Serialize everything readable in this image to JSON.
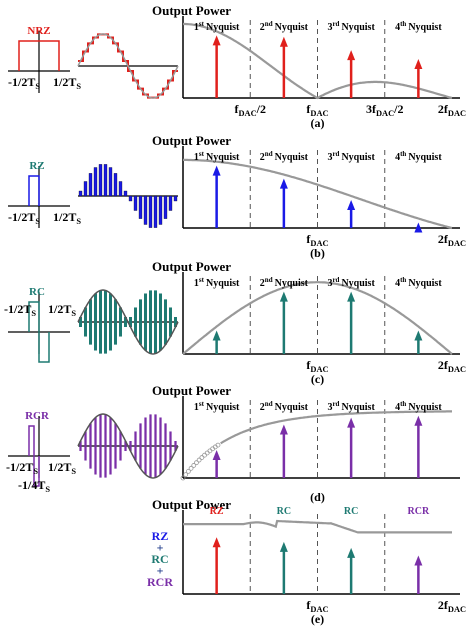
{
  "panels": [
    {
      "title": "Output Power",
      "caption": "(a)",
      "pulse": "NRZ",
      "nyquist": [
        {
          "n": "1",
          "sup": "st",
          "text": "Nyquist"
        },
        {
          "n": "2",
          "sup": "nd",
          "text": "Nyquist"
        },
        {
          "n": "3",
          "sup": "rd",
          "text": "Nyquist"
        },
        {
          "n": "4",
          "sup": "th",
          "text": "Nyquist"
        }
      ],
      "freq_labels": [
        {
          "pre": "f",
          "sub": "DAC",
          "post": "/2"
        },
        {
          "pre": "f",
          "sub": "DAC"
        },
        {
          "pre": "3f",
          "sub": "DAC",
          "post": "/2"
        },
        {
          "pre": "2f",
          "sub": "DAC"
        }
      ],
      "time_labels": [
        {
          "pre": "-1/2T",
          "sub": "S"
        },
        {
          "pre": "1/2T",
          "sub": "S"
        }
      ]
    },
    {
      "title": "Output Power",
      "caption": "(b)",
      "pulse": "RZ",
      "nyquist": [
        {
          "n": "1",
          "sup": "st",
          "text": "Nyquist"
        },
        {
          "n": "2",
          "sup": "nd",
          "text": "Nyquist"
        },
        {
          "n": "3",
          "sup": "rd",
          "text": "Nyquist"
        },
        {
          "n": "4",
          "sup": "th",
          "text": "Nyquist"
        }
      ],
      "freq_labels": [
        {
          "pre": "f",
          "sub": "DAC"
        },
        {
          "pre": "2f",
          "sub": "DAC"
        }
      ],
      "time_labels": [
        {
          "pre": "-1/2T",
          "sub": "S"
        },
        {
          "pre": "1/2T",
          "sub": "S"
        }
      ]
    },
    {
      "title": "Output Power",
      "caption": "(c)",
      "pulse": "RC",
      "nyquist": [
        {
          "n": "1",
          "sup": "st",
          "text": "Nyquist"
        },
        {
          "n": "2",
          "sup": "nd",
          "text": "Nyquist"
        },
        {
          "n": "3",
          "sup": "rd",
          "text": "Nyquist"
        },
        {
          "n": "4",
          "sup": "th",
          "text": "Nyquist"
        }
      ],
      "freq_labels": [
        {
          "pre": "f",
          "sub": "DAC"
        },
        {
          "pre": "2f",
          "sub": "DAC"
        }
      ],
      "time_labels": [
        {
          "pre": "-1/2T",
          "sub": "S"
        },
        {
          "pre": "1/2T",
          "sub": "S"
        }
      ]
    },
    {
      "title": "Output Power",
      "caption": "(d)",
      "pulse": "RCR",
      "nyquist": [
        {
          "n": "1",
          "sup": "st",
          "text": "Nyquist"
        },
        {
          "n": "2",
          "sup": "nd",
          "text": "Nyquist"
        },
        {
          "n": "3",
          "sup": "rd",
          "text": "Nyquist"
        },
        {
          "n": "4",
          "sup": "th",
          "text": "Nyquist"
        }
      ],
      "time_labels": [
        {
          "pre": "-1/2T",
          "sub": "S"
        },
        {
          "pre": "1/2T",
          "sub": "S"
        },
        {
          "pre": "-1/4T",
          "sub": "S"
        }
      ]
    },
    {
      "title": "Output Power",
      "caption": "(e)",
      "zone_labels": [
        "RZ",
        "RC",
        "RC",
        "RCR"
      ],
      "legend": [
        "RZ",
        "+",
        "RC",
        "+",
        "RCR"
      ],
      "freq_labels": [
        {
          "pre": "f",
          "sub": "DAC"
        },
        {
          "pre": "2f",
          "sub": "DAC"
        }
      ]
    }
  ]
}
